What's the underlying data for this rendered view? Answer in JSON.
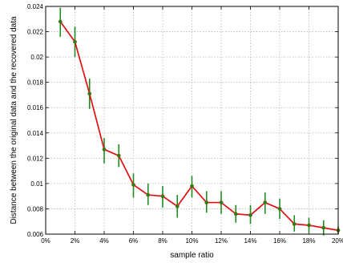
{
  "chart_data": {
    "type": "line",
    "title": "",
    "xlabel": "sample ratio",
    "ylabel": "Distance between the original data and the recovered data",
    "xlim": [
      0,
      20
    ],
    "ylim": [
      0.006,
      0.024
    ],
    "x_ticks": [
      0,
      2,
      4,
      6,
      8,
      10,
      12,
      14,
      16,
      18,
      20
    ],
    "x_tick_labels": [
      "0%",
      "2%",
      "4%",
      "6%",
      "8%",
      "10%",
      "12%",
      "14%",
      "16%",
      "18%",
      "20%"
    ],
    "y_ticks": [
      0.006,
      0.008,
      0.01,
      0.012,
      0.014,
      0.016,
      0.018,
      0.02,
      0.022,
      0.024
    ],
    "y_tick_labels": [
      "0.006",
      "0.008",
      "0.01",
      "0.012",
      "0.014",
      "0.016",
      "0.018",
      "0.02",
      "0.022",
      "0.024"
    ],
    "grid": true,
    "series": [
      {
        "x": [
          1,
          2,
          3,
          4,
          5,
          6,
          7,
          8,
          9,
          10,
          11,
          12,
          13,
          14,
          15,
          16,
          17,
          18,
          19,
          20
        ],
        "values": [
          0.0228,
          0.0212,
          0.0171,
          0.0127,
          0.0122,
          0.0099,
          0.0091,
          0.009,
          0.0082,
          0.0098,
          0.0085,
          0.0085,
          0.0076,
          0.0075,
          0.0085,
          0.008,
          0.0068,
          0.0067,
          0.0065,
          0.0063
        ],
        "err_upper": [
          0.0239,
          0.0224,
          0.0183,
          0.0136,
          0.0131,
          0.0108,
          0.01,
          0.0098,
          0.0091,
          0.0106,
          0.0094,
          0.0094,
          0.0083,
          0.0083,
          0.0093,
          0.0088,
          0.0075,
          0.0073,
          0.0071,
          0.0066
        ],
        "err_lower": [
          0.0216,
          0.02,
          0.0159,
          0.0116,
          0.0113,
          0.0089,
          0.0083,
          0.0081,
          0.0073,
          0.0089,
          0.0077,
          0.0076,
          0.0069,
          0.0068,
          0.0076,
          0.0072,
          0.0062,
          0.0061,
          0.0059,
          0.006
        ],
        "line_color": "#e01010",
        "marker_color": "#0a8a1a",
        "error_bar_color": "#1e8c1e"
      }
    ]
  }
}
